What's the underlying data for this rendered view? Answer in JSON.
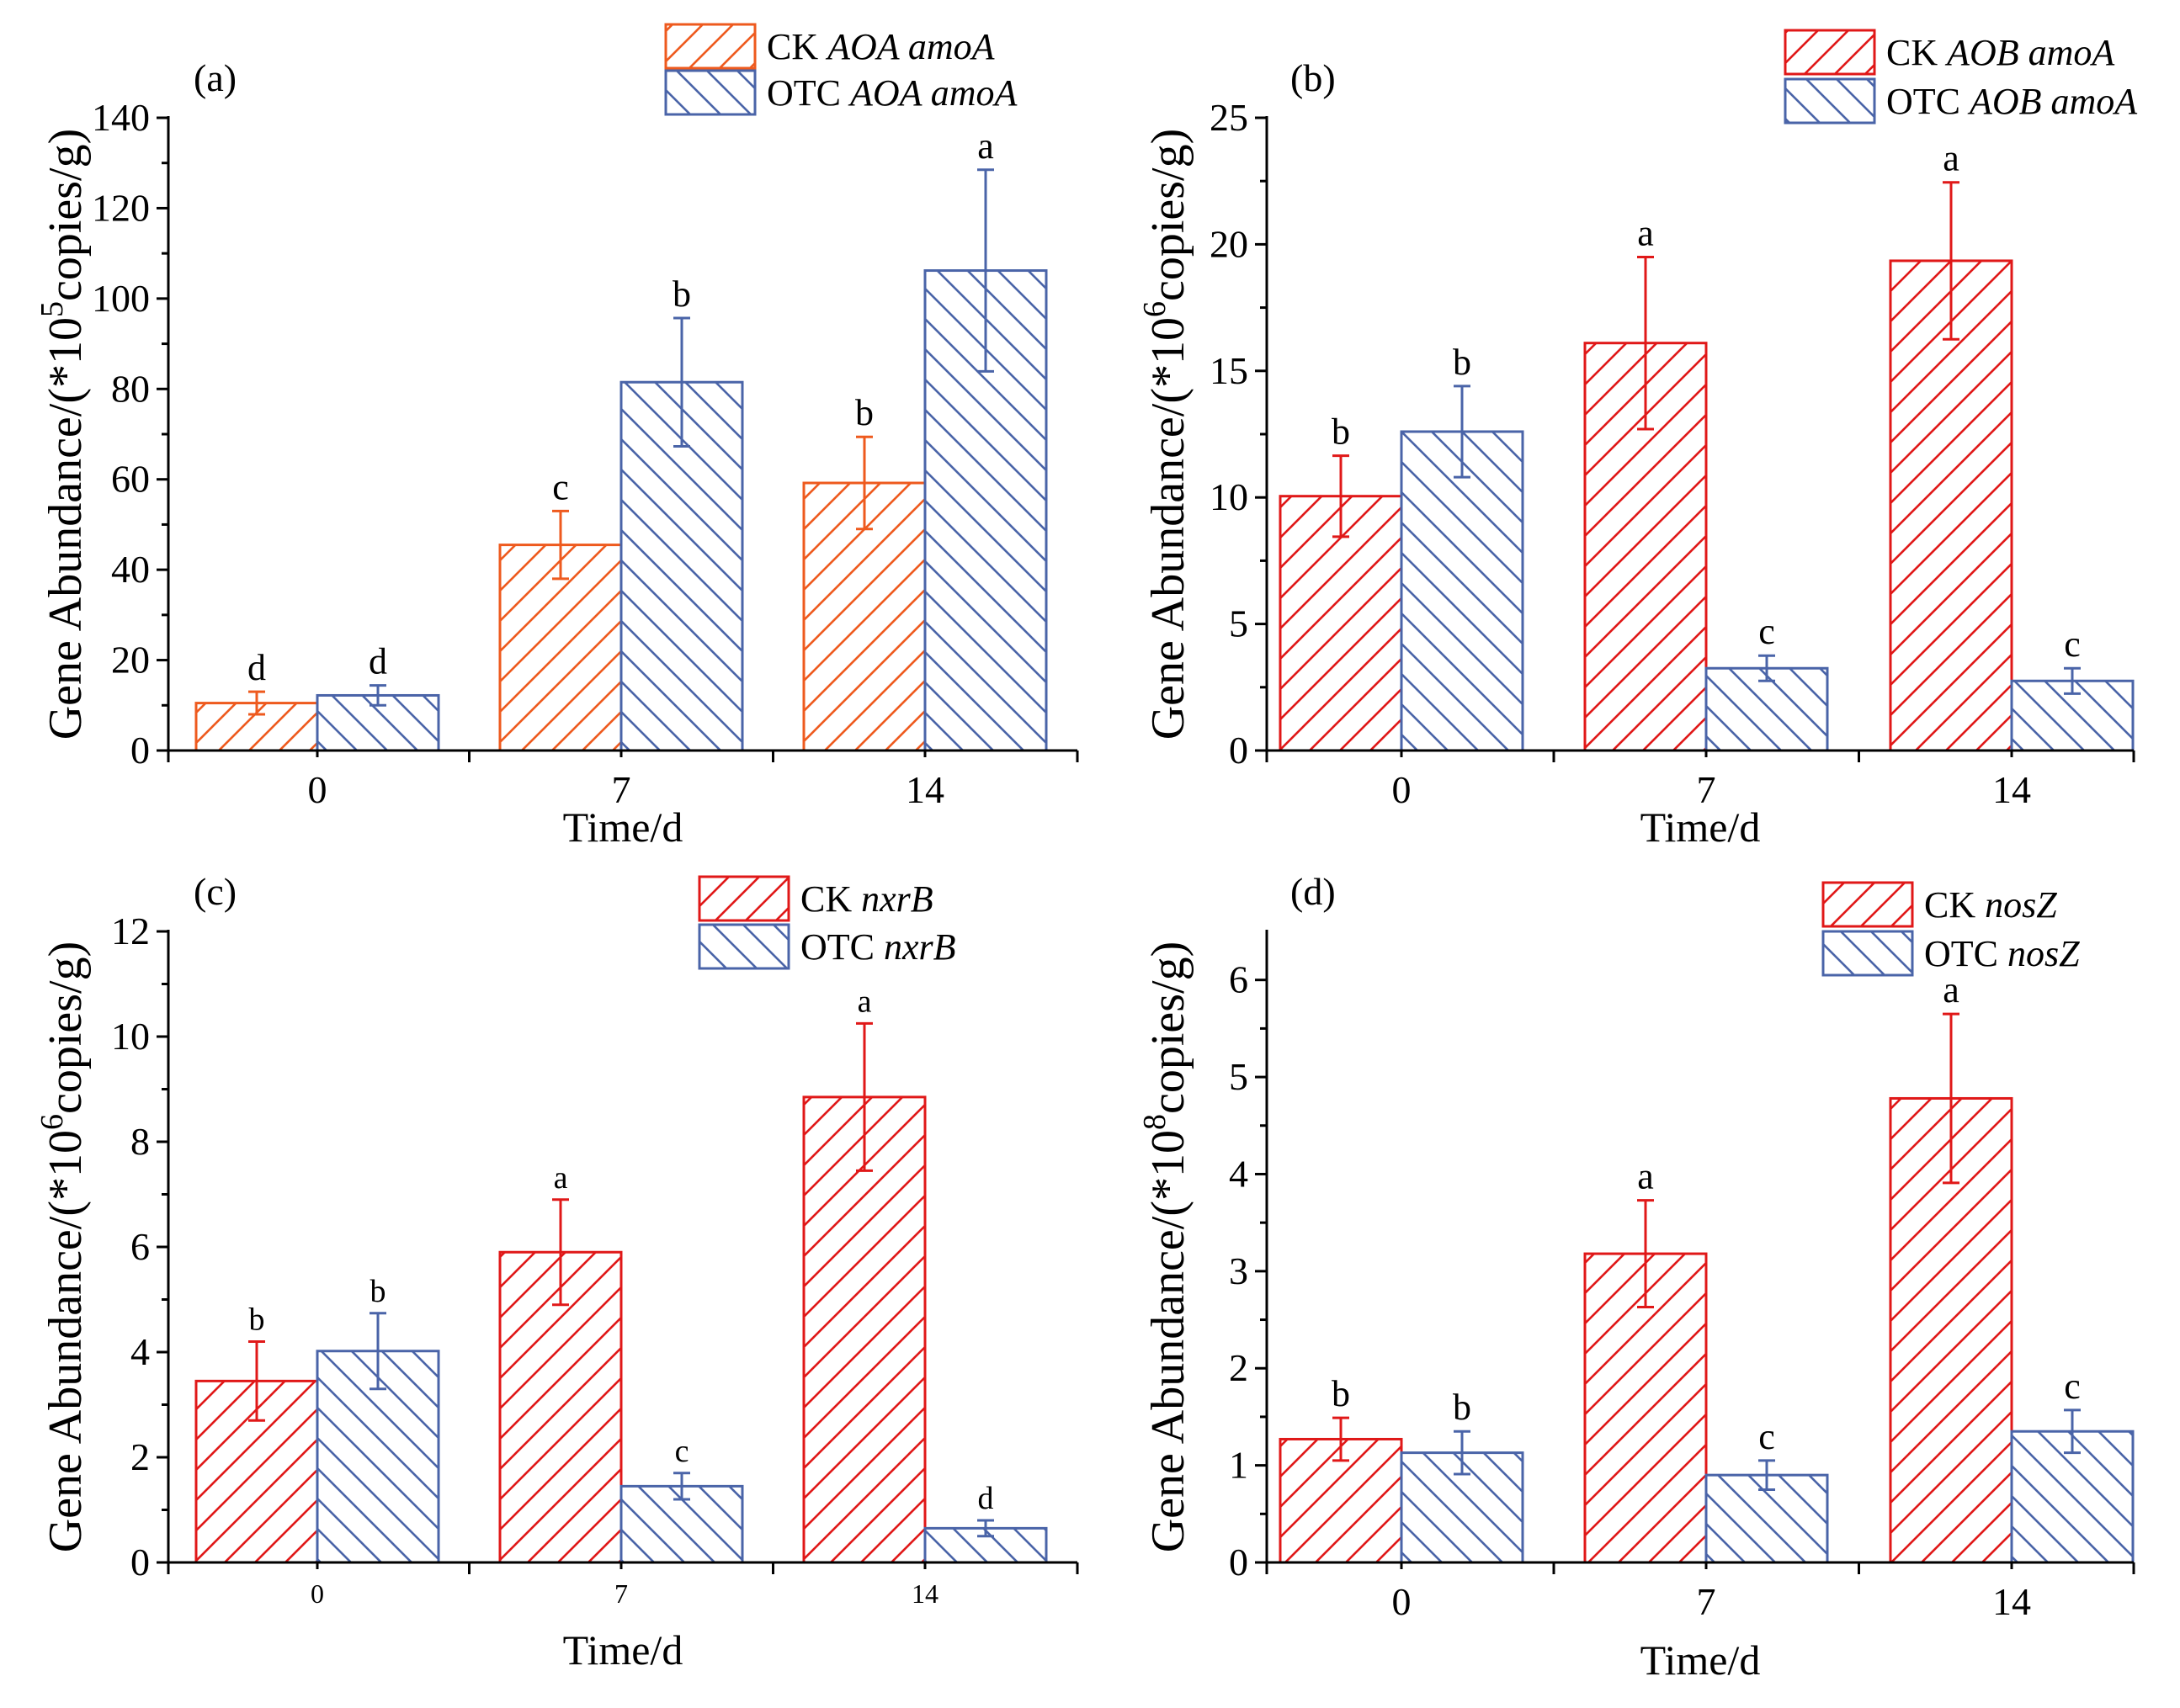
{
  "colors": {
    "ck_red": "#e01818",
    "ck_orange": "#ee5a1e",
    "otc_blue": "#4a64a8"
  },
  "chart_data": [
    {
      "panel": "(a)",
      "type": "bar",
      "xlabel": "Time/d",
      "ylabel": "Gene Abundance/(*10",
      "ylabel_exp": "5",
      "ylabel_tail": "copies/g)",
      "categories": [
        "0",
        "7",
        "14"
      ],
      "ylim": [
        0,
        140
      ],
      "yticks": [
        "0",
        "20",
        "40",
        "60",
        "80",
        "100",
        "120",
        "140"
      ],
      "ck_color": "#ee5a1e",
      "series": [
        {
          "name": "CK AOA amoA",
          "prefix": "CK ",
          "gene": "AOA amoA",
          "values": [
            10.5,
            45.5,
            59.2
          ],
          "errors": [
            2.5,
            7.5,
            10.2
          ],
          "letters": [
            "d",
            "c",
            "b"
          ]
        },
        {
          "name": "OTC AOA amoA",
          "prefix": "OTC ",
          "gene": "AOA amoA",
          "values": [
            12.2,
            81.5,
            106.2
          ],
          "errors": [
            2.2,
            14.2,
            22.3
          ],
          "letters": [
            "d",
            "b",
            "a"
          ]
        }
      ]
    },
    {
      "panel": "(b)",
      "type": "bar",
      "xlabel": "Time/d",
      "ylabel": "Gene Abundance/(*10",
      "ylabel_exp": "6",
      "ylabel_tail": "copies/g)",
      "categories": [
        "0",
        "7",
        "14"
      ],
      "ylim": [
        0,
        25
      ],
      "yticks": [
        "0",
        "5",
        "10",
        "15",
        "20",
        "25"
      ],
      "ck_color": "#e01818",
      "series": [
        {
          "name": "CK AOB amoA",
          "prefix": "CK ",
          "gene": "AOB amoA",
          "values": [
            10.05,
            16.1,
            19.35
          ],
          "errors": [
            1.6,
            3.4,
            3.1
          ],
          "letters": [
            "b",
            "a",
            "a"
          ]
        },
        {
          "name": "OTC AOB amoA",
          "prefix": "OTC ",
          "gene": "AOB amoA",
          "values": [
            12.6,
            3.25,
            2.75
          ],
          "errors": [
            1.8,
            0.5,
            0.5
          ],
          "letters": [
            "b",
            "c",
            "c"
          ]
        }
      ]
    },
    {
      "panel": "(c)",
      "type": "bar",
      "xlabel": "Time/d",
      "ylabel": "Gene Abundance/(*10",
      "ylabel_exp": "6",
      "ylabel_tail": "copies/g)",
      "categories": [
        "0",
        "7",
        "14"
      ],
      "ylim": [
        0,
        12
      ],
      "yticks": [
        "0",
        "2",
        "4",
        "6",
        "8",
        "10",
        "12"
      ],
      "ck_color": "#e01818",
      "series": [
        {
          "name": "CK nxrB",
          "prefix": "CK ",
          "gene": "nxrB",
          "values": [
            3.45,
            5.9,
            8.85
          ],
          "errors": [
            0.75,
            1.0,
            1.4
          ],
          "letters": [
            "b",
            "a",
            "a"
          ]
        },
        {
          "name": "OTC nxrB",
          "prefix": "OTC ",
          "gene": "nxrB",
          "values": [
            4.02,
            1.45,
            0.65
          ],
          "errors": [
            0.72,
            0.25,
            0.15
          ],
          "letters": [
            "b",
            "c",
            "d"
          ]
        }
      ]
    },
    {
      "panel": "(d)",
      "type": "bar",
      "xlabel": "Time/d",
      "ylabel": "Gene Abundance/(*10",
      "ylabel_exp": "8",
      "ylabel_tail": "copies/g)",
      "categories": [
        "0",
        "7",
        "14"
      ],
      "ylim": [
        0,
        6.5
      ],
      "yticks": [
        "0",
        "1",
        "2",
        "3",
        "4",
        "5",
        "6"
      ],
      "ck_color": "#e01818",
      "series": [
        {
          "name": "CK nosZ",
          "prefix": "CK ",
          "gene": "nosZ",
          "values": [
            1.27,
            3.18,
            4.78
          ],
          "errors": [
            0.22,
            0.55,
            0.87
          ],
          "letters": [
            "b",
            "a",
            "a"
          ]
        },
        {
          "name": "OTC nosZ",
          "prefix": "OTC ",
          "gene": "nosZ",
          "values": [
            1.13,
            0.9,
            1.35
          ],
          "errors": [
            0.22,
            0.15,
            0.22
          ],
          "letters": [
            "b",
            "c",
            "c"
          ]
        }
      ]
    }
  ]
}
